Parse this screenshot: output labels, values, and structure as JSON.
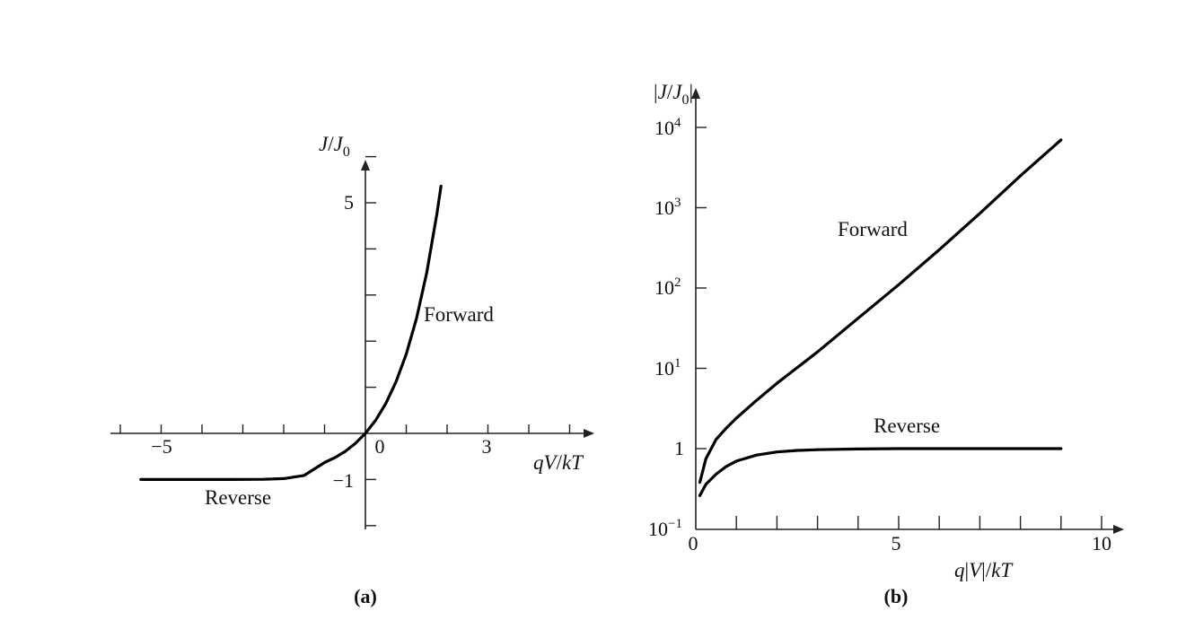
{
  "panels": [
    {
      "caption": "(a)",
      "xlabel": "qV/kT",
      "ylabel": "J/J0",
      "x_ticks": [
        {
          "value": -5,
          "label": "−5"
        },
        {
          "value": 0,
          "label": "0"
        },
        {
          "value": 3,
          "label": "3"
        }
      ],
      "y_ticks": [
        {
          "value": 5,
          "label": "5"
        },
        {
          "value": -1,
          "label": "−1"
        }
      ],
      "curve_labels": {
        "forward": "Forward",
        "reverse": "Reverse"
      }
    },
    {
      "caption": "(b)",
      "xlabel": "q|V|/kT",
      "ylabel": "|J/J0|",
      "x_ticks": [
        {
          "value": 0,
          "label": "0"
        },
        {
          "value": 5,
          "label": "5"
        },
        {
          "value": 10,
          "label": "10"
        }
      ],
      "y_ticks": [
        {
          "value": -1,
          "base": "10",
          "exp": "−1"
        },
        {
          "value": 0,
          "base": "1",
          "exp": ""
        },
        {
          "value": 1,
          "base": "10",
          "exp": "1"
        },
        {
          "value": 2,
          "base": "10",
          "exp": "2"
        },
        {
          "value": 3,
          "base": "10",
          "exp": "3"
        },
        {
          "value": 4,
          "base": "10",
          "exp": "4"
        }
      ],
      "curve_labels": {
        "forward": "Forward",
        "reverse": "Reverse"
      }
    }
  ],
  "chart_data": [
    {
      "type": "line",
      "xlabel": "qV/kT",
      "ylabel": "J/J0",
      "xlim": [
        -6,
        5.5
      ],
      "ylim": [
        -2,
        6.8
      ],
      "x_minor_tick_step": 1,
      "y_minor_tick_step": 1,
      "series": [
        {
          "name": "Forward",
          "x": [
            0,
            0.25,
            0.5,
            0.75,
            1.0,
            1.25,
            1.5,
            1.75,
            1.85
          ],
          "y": [
            0,
            0.284,
            0.649,
            1.117,
            1.718,
            2.49,
            3.482,
            4.755,
            5.36
          ]
        },
        {
          "name": "Reverse",
          "x": [
            -5.5,
            -4.5,
            -3.5,
            -2.5,
            -2.0,
            -1.5,
            -1.0,
            -0.75,
            -0.5,
            -0.25,
            0
          ],
          "y": [
            -1,
            -1,
            -1,
            -0.997,
            -0.981,
            -0.913,
            -0.632,
            -0.528,
            -0.393,
            -0.221,
            0
          ]
        }
      ]
    },
    {
      "type": "line",
      "log_y": true,
      "xlabel": "q|V|/kT",
      "ylabel": "|J/J0|",
      "xlim": [
        0,
        10.4
      ],
      "ylim": [
        0.1,
        10000
      ],
      "x_minor_tick_step": 1,
      "series": [
        {
          "name": "Forward",
          "x": [
            0.1,
            0.25,
            0.5,
            0.75,
            1,
            1.5,
            2,
            3,
            4,
            5,
            6,
            7,
            8,
            9
          ],
          "y": [
            0.38,
            0.75,
            1.3,
            1.8,
            2.4,
            4.0,
            6.5,
            16,
            42,
            110,
            300,
            850,
            2500,
            7000
          ]
        },
        {
          "name": "Reverse",
          "x": [
            0.1,
            0.25,
            0.5,
            0.75,
            1,
            1.5,
            2,
            2.5,
            3,
            4,
            5,
            6,
            7,
            8,
            9
          ],
          "y": [
            0.26,
            0.36,
            0.48,
            0.6,
            0.7,
            0.83,
            0.91,
            0.95,
            0.97,
            0.99,
            1,
            1,
            1,
            1,
            1
          ]
        }
      ]
    }
  ]
}
